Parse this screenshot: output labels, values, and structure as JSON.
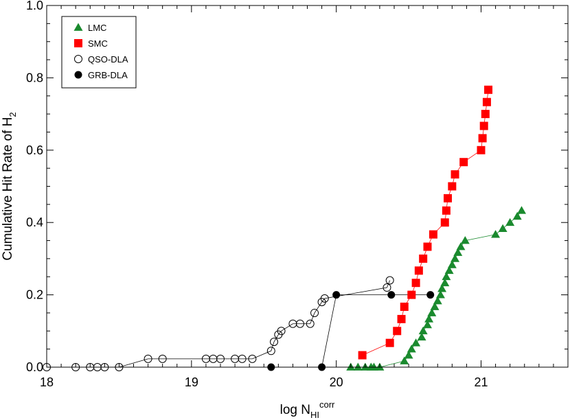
{
  "chart_data": {
    "type": "scatter",
    "title": "",
    "xlabel": {
      "base": "log N",
      "sub": "HI",
      "sup": "corr"
    },
    "ylabel": {
      "base": "Cumulative Hit Rate of H",
      "sub": "2"
    },
    "xlim": [
      18.0,
      21.6
    ],
    "ylim": [
      0.0,
      1.0
    ],
    "x_ticks": [
      18,
      19,
      20,
      21
    ],
    "x_tick_labels": [
      "18",
      "19",
      "20",
      "21"
    ],
    "x_minor_step": 0.1,
    "y_ticks": [
      0.0,
      0.2,
      0.4,
      0.6,
      0.8,
      1.0
    ],
    "y_tick_labels": [
      "0.0",
      "0.2",
      "0.4",
      "0.6",
      "0.8",
      "1.0"
    ],
    "y_minor_step": 0.05,
    "legend_position": "top-left",
    "series": [
      {
        "name": "LMC",
        "marker": "triangle",
        "color": "#1a8a2e",
        "line_color": "#1a8a2e",
        "x": [
          20.1,
          20.15,
          20.2,
          20.24,
          20.26,
          20.3,
          20.47,
          20.5,
          20.52,
          20.55,
          20.59,
          20.6,
          20.63,
          20.64,
          20.66,
          20.68,
          20.7,
          20.72,
          20.73,
          20.75,
          20.76,
          20.78,
          20.8,
          20.82,
          20.84,
          20.86,
          20.89,
          21.1,
          21.15,
          21.2,
          21.25,
          21.28
        ],
        "y": [
          0.0,
          0.0,
          0.0,
          0.0,
          0.0,
          0.0,
          0.017,
          0.033,
          0.05,
          0.067,
          0.083,
          0.1,
          0.117,
          0.133,
          0.15,
          0.167,
          0.183,
          0.2,
          0.217,
          0.233,
          0.25,
          0.267,
          0.283,
          0.3,
          0.317,
          0.333,
          0.35,
          0.367,
          0.383,
          0.4,
          0.417,
          0.433
        ]
      },
      {
        "name": "SMC",
        "marker": "square",
        "color": "#ff0000",
        "line_color": "#ff0000",
        "x": [
          20.18,
          20.37,
          20.42,
          20.45,
          20.47,
          20.52,
          20.55,
          20.57,
          20.6,
          20.63,
          20.67,
          20.75,
          20.76,
          20.77,
          20.8,
          20.82,
          20.88,
          21.0,
          21.01,
          21.02,
          21.03,
          21.04,
          21.05
        ],
        "y": [
          0.033,
          0.067,
          0.1,
          0.133,
          0.167,
          0.2,
          0.233,
          0.267,
          0.3,
          0.333,
          0.367,
          0.4,
          0.433,
          0.467,
          0.5,
          0.533,
          0.567,
          0.6,
          0.633,
          0.667,
          0.7,
          0.733,
          0.767
        ]
      },
      {
        "name": "QSO-DLA",
        "marker": "open-circle",
        "color": "#000000",
        "line_color": "#000000",
        "x": [
          18.0,
          18.2,
          18.3,
          18.35,
          18.4,
          18.5,
          18.7,
          18.8,
          19.1,
          19.15,
          19.2,
          19.3,
          19.35,
          19.42,
          19.55,
          19.57,
          19.6,
          19.62,
          19.7,
          19.75,
          19.82,
          19.85,
          19.9,
          19.92,
          20.35,
          20.37
        ],
        "y": [
          0.0,
          0.0,
          0.0,
          0.0,
          0.0,
          0.0,
          0.023,
          0.023,
          0.023,
          0.023,
          0.023,
          0.023,
          0.023,
          0.023,
          0.045,
          0.07,
          0.09,
          0.1,
          0.12,
          0.12,
          0.12,
          0.15,
          0.18,
          0.19,
          0.22,
          0.24
        ]
      },
      {
        "name": "GRB-DLA",
        "marker": "filled-circle",
        "color": "#000000",
        "line_color": "#000000",
        "x": [
          19.55,
          19.9,
          20.0,
          20.38,
          20.65
        ],
        "y": [
          0.0,
          0.0,
          0.2,
          0.2,
          0.2
        ]
      }
    ]
  }
}
